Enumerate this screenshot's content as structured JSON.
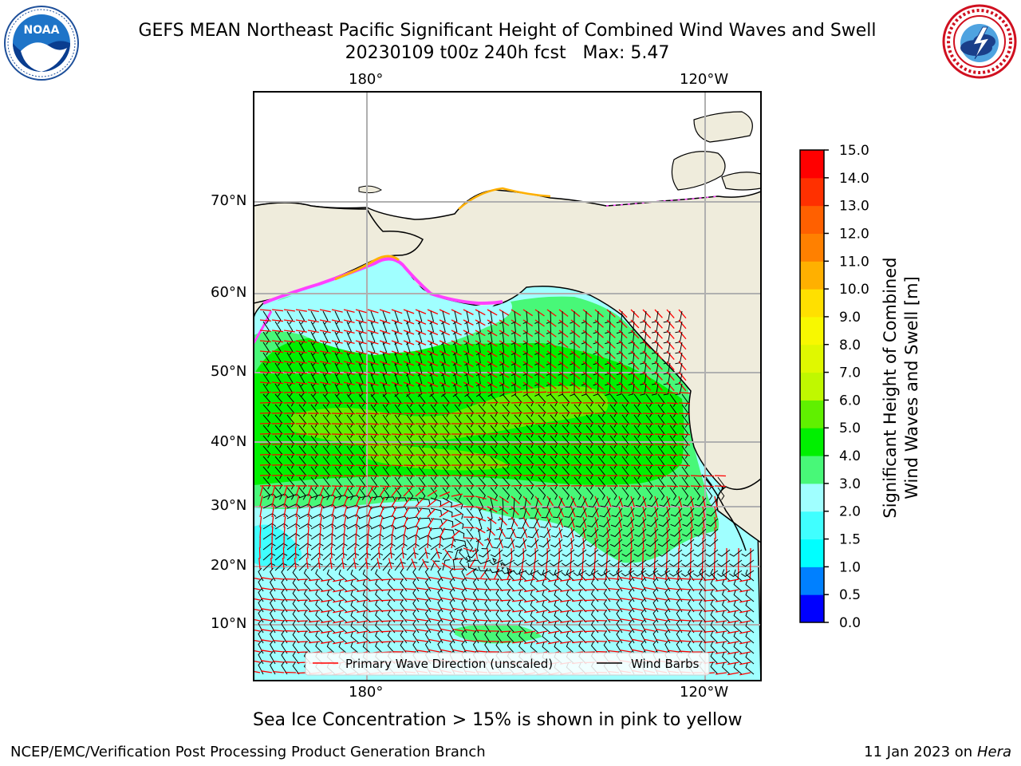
{
  "header": {
    "title_line1": "GEFS MEAN Northeast Pacific Significant Height of Combined Wind Waves and Swell",
    "title_line2": "20230109 t00z 240h fcst   Max: 5.47"
  },
  "logos": {
    "left": {
      "name": "noaa-logo",
      "text": "NOAA",
      "ring_text": "NATIONAL OCEANIC AND ATMOSPHERIC ADMINISTRATION · U.S. DEPARTMENT OF COMMERCE"
    },
    "right": {
      "name": "nws-logo",
      "ring_text": "NATIONAL WEATHER SERVICE"
    }
  },
  "map": {
    "lon_ticks_top": [
      "180°",
      "120°W"
    ],
    "lon_ticks_bottom": [
      "180°",
      "120°W"
    ],
    "lat_ticks": [
      "70°N",
      "60°N",
      "50°N",
      "40°N",
      "30°N",
      "20°N",
      "10°N"
    ],
    "land_color": "#efecdc",
    "legend": [
      {
        "label": "Primary Wave Direction (unscaled)",
        "color": "#ff0000"
      },
      {
        "label": "Wind Barbs",
        "color": "#000000"
      }
    ]
  },
  "colorbar": {
    "label_line1": "Significant Height of Combined",
    "label_line2": "Wind Waves and Swell [m]",
    "ticks": [
      "0.0",
      "0.5",
      "1.0",
      "1.5",
      "2.0",
      "3.0",
      "4.0",
      "5.0",
      "6.0",
      "7.0",
      "8.0",
      "9.0",
      "10.0",
      "11.0",
      "12.0",
      "13.0",
      "14.0",
      "15.0"
    ],
    "colors": [
      "#0000ff",
      "#0080ff",
      "#00ffff",
      "#40ffff",
      "#a0ffff",
      "#48f878",
      "#00f000",
      "#60f000",
      "#c0f800",
      "#e0f800",
      "#f8f800",
      "#ffe000",
      "#ffb000",
      "#ff8000",
      "#ff6000",
      "#ff3000",
      "#ff0000"
    ]
  },
  "footer": {
    "ice_note": "Sea Ice Concentration > 15% is shown in pink to yellow",
    "left": "NCEP/EMC/Verification Post Processing Product Generation Branch",
    "date": "11 Jan 2023 on ",
    "machine": "Hera"
  }
}
